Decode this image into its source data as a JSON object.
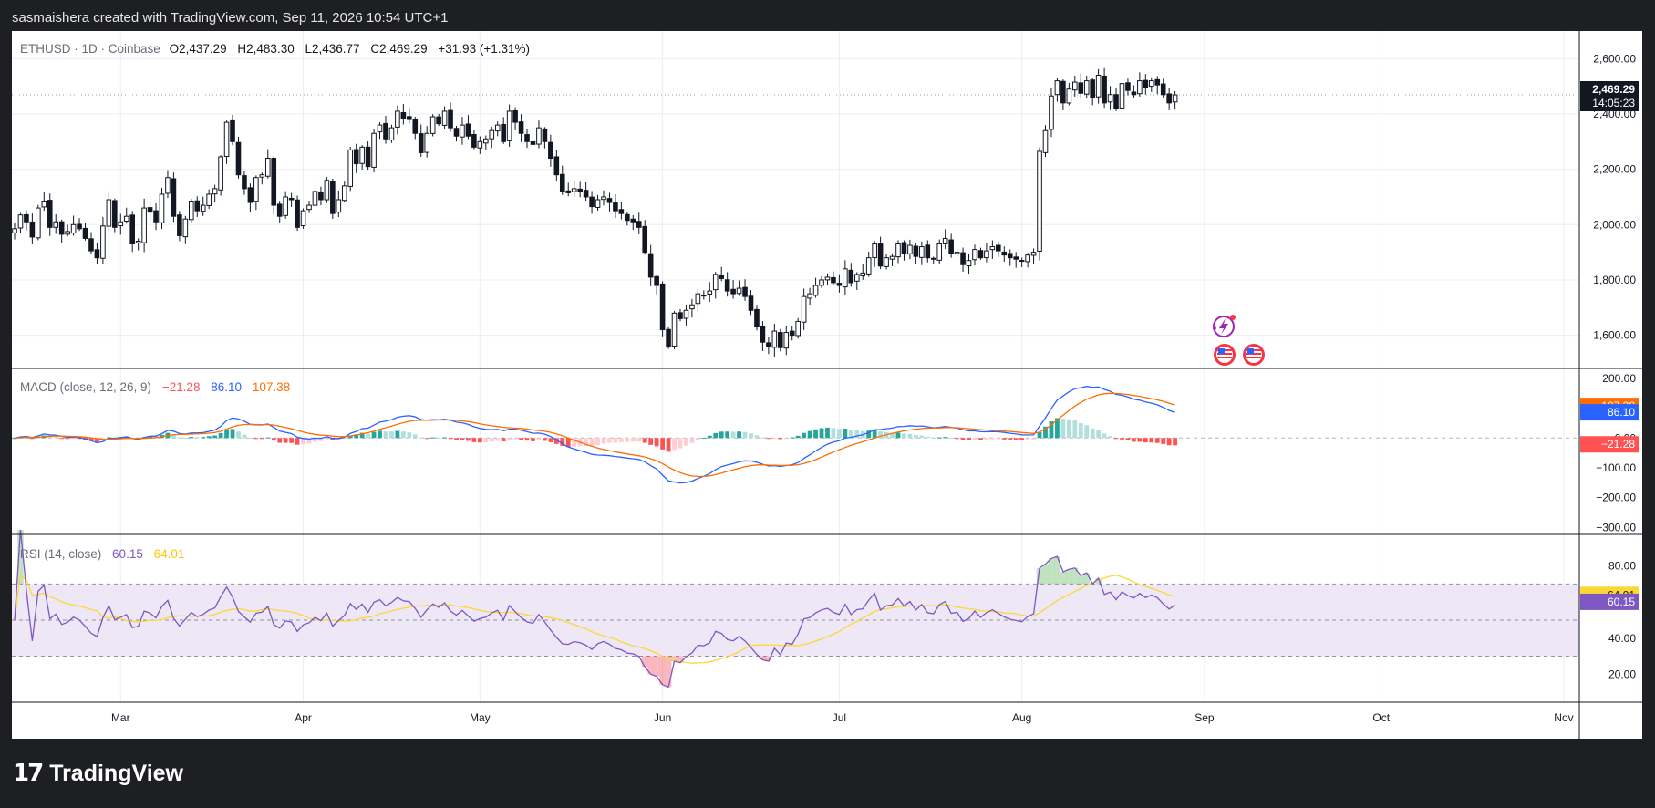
{
  "header": {
    "caption": "sasmaishera created with TradingView.com, Sep 11, 2026 10:54 UTC+1"
  },
  "footer": {
    "logo_text": "TradingView"
  },
  "colors": {
    "up": "#ffffff",
    "down": "#131722",
    "macd": "#2962ff",
    "signal": "#ff6d00",
    "hist_pos_strong": "#26a69a",
    "hist_pos_weak": "#b2dfdb",
    "hist_neg_strong": "#ff5252",
    "hist_neg_weak": "#ffcdd2",
    "rsi": "#7e57c2",
    "rsi_ma": "#fdd835",
    "rsi_band": "#ede7f6",
    "grid": "#e0e3eb"
  },
  "legend": {
    "symbol": "ETHUSD · 1D · Coinbase",
    "o_label": "O",
    "o_value": "2,437.29",
    "h_label": "H",
    "h_value": "2,483.30",
    "l_label": "L",
    "l_value": "2,436.77",
    "c_label": "C",
    "c_value": "2,469.29",
    "change": "+31.93 (+1.31%)",
    "macd_title": "MACD (close, 12, 26, 9)",
    "macd_hist": "−21.28",
    "macd_line": "86.10",
    "macd_signal": "107.38",
    "rsi_title": "RSI (14, close)",
    "rsi_value": "60.15",
    "rsi_ma": "64.01"
  },
  "price_tag": {
    "price": "2,469.29",
    "countdown": "14:05:23"
  },
  "chart_data": [
    {
      "type": "candlestick",
      "title": "ETHUSD · 1D · Coinbase",
      "x_labels": [
        "Mar",
        "Apr",
        "May",
        "Jun",
        "Jul",
        "Aug",
        "Sep",
        "Oct",
        "Nov"
      ],
      "y_ticks": [
        "2,600.00",
        "2,400.00",
        "2,200.00",
        "2,000.00",
        "1,800.00",
        "1,600.00"
      ],
      "y_tick_values": [
        2600,
        2400,
        2200,
        2000,
        1800,
        1600
      ],
      "ylim": [
        1480,
        2700
      ],
      "start_date": "2026-02-11",
      "close": [
        1985,
        2035,
        2010,
        1955,
        2060,
        2085,
        1990,
        2010,
        1965,
        1975,
        2000,
        1985,
        1950,
        1905,
        1880,
        1995,
        2090,
        1990,
        2010,
        2030,
        1930,
        1940,
        2060,
        2045,
        2010,
        2110,
        2170,
        2030,
        1960,
        2020,
        2085,
        2050,
        2070,
        2110,
        2130,
        2245,
        2370,
        2300,
        2180,
        2130,
        2080,
        2170,
        2180,
        2240,
        2070,
        2030,
        2100,
        2090,
        1990,
        2050,
        2070,
        2120,
        2090,
        2160,
        2040,
        2090,
        2140,
        2270,
        2220,
        2280,
        2210,
        2330,
        2360,
        2310,
        2350,
        2410,
        2385,
        2380,
        2330,
        2260,
        2330,
        2390,
        2365,
        2410,
        2350,
        2320,
        2360,
        2320,
        2280,
        2300,
        2310,
        2340,
        2360,
        2300,
        2410,
        2370,
        2330,
        2300,
        2290,
        2350,
        2300,
        2240,
        2180,
        2120,
        2115,
        2130,
        2120,
        2100,
        2065,
        2090,
        2100,
        2080,
        2050,
        2040,
        2015,
        2010,
        1990,
        1900,
        1810,
        1780,
        1620,
        1560,
        1680,
        1660,
        1690,
        1710,
        1750,
        1745,
        1760,
        1820,
        1805,
        1760,
        1750,
        1770,
        1740,
        1690,
        1630,
        1575,
        1560,
        1615,
        1555,
        1610,
        1600,
        1650,
        1740,
        1750,
        1780,
        1800,
        1810,
        1790,
        1780,
        1840,
        1790,
        1820,
        1825,
        1880,
        1930,
        1850,
        1880,
        1885,
        1930,
        1895,
        1925,
        1885,
        1920,
        1880,
        1875,
        1930,
        1950,
        1895,
        1900,
        1855,
        1870,
        1910,
        1880,
        1905,
        1920,
        1905,
        1890,
        1880,
        1875,
        1870,
        1890,
        1900,
        2265,
        2340,
        2465,
        2520,
        2440,
        2490,
        2515,
        2475,
        2520,
        2460,
        2540,
        2440,
        2470,
        2420,
        2510,
        2485,
        2470,
        2520,
        2495,
        2520,
        2505,
        2470,
        2440,
        2469
      ],
      "rsi_ticks": [
        "80.00",
        "60.00",
        "40.00",
        "20.00"
      ],
      "rsi_tick_values": [
        80,
        60,
        40,
        20
      ],
      "rsi_bands": [
        70,
        50,
        30
      ],
      "macd_ticks": [
        "200.00",
        "0.00",
        "−100.00",
        "−200.00",
        "−300.00"
      ],
      "macd_tick_values": [
        200,
        0,
        -100,
        -200,
        -300
      ]
    }
  ],
  "ui_icons": [
    "lightning-bolt-icon",
    "us-flag-icon",
    "us-flag-icon"
  ]
}
